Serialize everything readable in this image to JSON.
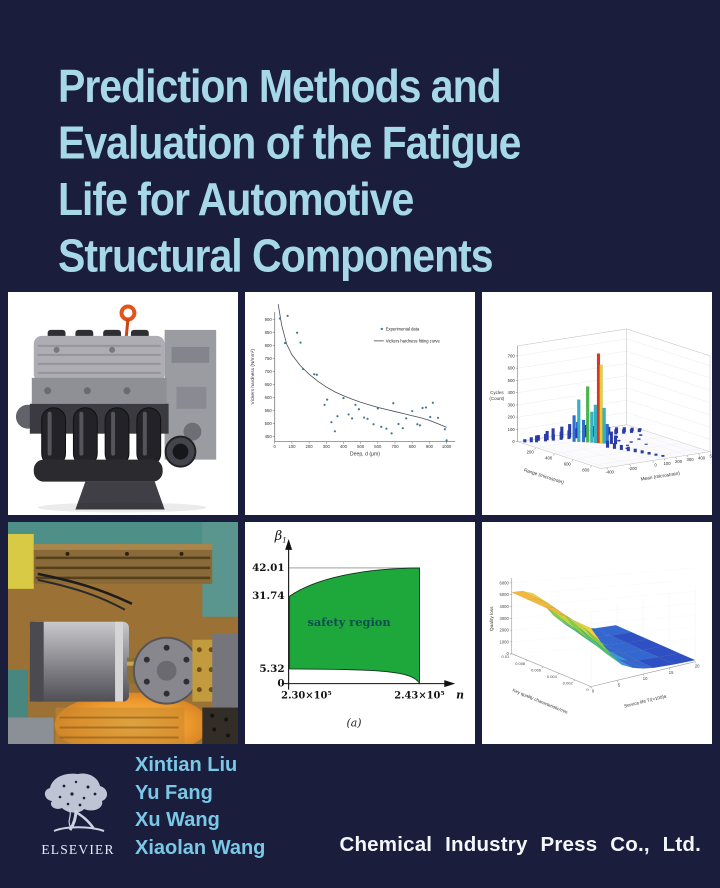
{
  "cover": {
    "background_color": "#1a1d3c",
    "title_color": "#a6d8e9",
    "title_lines": [
      "Prediction Methods and",
      "Evaluation of the Fatigue",
      "Life for Automotive",
      "Structural Components"
    ],
    "authors_color": "#7bc8e6",
    "authors": [
      "Xintian Liu",
      "Yu Fang",
      "Xu Wang",
      "Xiaolan Wang"
    ],
    "publisher": "Chemical Industry Press Co., Ltd.",
    "elsevier_label": "ELSEVIER"
  },
  "chart_data": [
    {
      "id": "hardness_scatter",
      "type": "scatter",
      "xlabel": "Deep, d (μm)",
      "ylabel": "Vickers hardness (N/mm²)",
      "xlim": [
        0,
        1050
      ],
      "ylim": [
        430,
        930
      ],
      "xticks": [
        0,
        100,
        200,
        300,
        400,
        500,
        600,
        700,
        800,
        900,
        1000
      ],
      "yticks": [
        450,
        500,
        550,
        600,
        650,
        700,
        750,
        800,
        850,
        900
      ],
      "legend": [
        "Experimental data",
        "Vickers hardness fitting curve"
      ],
      "points": [
        [
          30,
          905
        ],
        [
          75,
          915
        ],
        [
          60,
          810
        ],
        [
          130,
          850
        ],
        [
          150,
          812
        ],
        [
          165,
          710
        ],
        [
          230,
          690
        ],
        [
          245,
          688
        ],
        [
          290,
          572
        ],
        [
          305,
          592
        ],
        [
          330,
          505
        ],
        [
          350,
          470
        ],
        [
          365,
          528
        ],
        [
          400,
          598
        ],
        [
          430,
          535
        ],
        [
          450,
          520
        ],
        [
          470,
          572
        ],
        [
          490,
          555
        ],
        [
          520,
          523
        ],
        [
          540,
          518
        ],
        [
          575,
          497
        ],
        [
          600,
          558
        ],
        [
          620,
          487
        ],
        [
          650,
          480
        ],
        [
          680,
          462
        ],
        [
          690,
          578
        ],
        [
          720,
          498
        ],
        [
          745,
          482
        ],
        [
          765,
          520
        ],
        [
          800,
          548
        ],
        [
          830,
          497
        ],
        [
          845,
          493
        ],
        [
          860,
          560
        ],
        [
          880,
          562
        ],
        [
          905,
          525
        ],
        [
          920,
          580
        ],
        [
          950,
          522
        ],
        [
          990,
          478
        ],
        [
          1000,
          435
        ]
      ],
      "curve": [
        [
          20,
          960
        ],
        [
          40,
          880
        ],
        [
          70,
          805
        ],
        [
          100,
          765
        ],
        [
          150,
          722
        ],
        [
          200,
          690
        ],
        [
          250,
          663
        ],
        [
          300,
          641
        ],
        [
          350,
          622
        ],
        [
          400,
          607
        ],
        [
          450,
          594
        ],
        [
          500,
          582
        ],
        [
          550,
          572
        ],
        [
          600,
          562
        ],
        [
          650,
          554
        ],
        [
          700,
          546
        ],
        [
          750,
          538
        ],
        [
          800,
          530
        ],
        [
          850,
          522
        ],
        [
          900,
          512
        ],
        [
          950,
          499
        ],
        [
          1000,
          485
        ]
      ]
    },
    {
      "id": "rainflow_histogram_3d",
      "type": "hist3d",
      "zlabel_lines": [
        "Cycles",
        "(Count)"
      ],
      "xlabel": "Range (microstrain)",
      "ylabel": "Mean (microstrain)",
      "zticks": [
        0,
        100,
        200,
        300,
        400,
        500,
        600,
        700
      ],
      "xticks": [
        200,
        400,
        600,
        800
      ],
      "yticks": [
        -400,
        -200,
        0,
        100,
        200,
        300,
        400,
        500
      ],
      "bars": [
        [
          40,
          -420,
          25
        ],
        [
          60,
          -380,
          40
        ],
        [
          80,
          -350,
          55
        ],
        [
          50,
          -310,
          45
        ],
        [
          90,
          -280,
          60
        ],
        [
          70,
          -250,
          75
        ],
        [
          100,
          -220,
          50
        ],
        [
          60,
          -190,
          85
        ],
        [
          110,
          -160,
          65
        ],
        [
          80,
          -130,
          95
        ],
        [
          120,
          -100,
          70
        ],
        [
          90,
          -70,
          110
        ],
        [
          130,
          -40,
          80
        ],
        [
          100,
          -10,
          120
        ],
        [
          140,
          20,
          70
        ],
        [
          110,
          50,
          90
        ],
        [
          150,
          80,
          60
        ],
        [
          120,
          110,
          75
        ],
        [
          160,
          140,
          50
        ],
        [
          130,
          170,
          60
        ],
        [
          170,
          200,
          45
        ],
        [
          140,
          230,
          55
        ],
        [
          180,
          260,
          40
        ],
        [
          150,
          290,
          45
        ],
        [
          190,
          320,
          35
        ],
        [
          160,
          350,
          40
        ],
        [
          200,
          380,
          30
        ],
        [
          170,
          410,
          30
        ],
        [
          210,
          440,
          25
        ],
        [
          180,
          470,
          20
        ],
        [
          200,
          -120,
          215
        ],
        [
          220,
          -95,
          345
        ],
        [
          240,
          -70,
          180
        ],
        [
          260,
          -50,
          455
        ],
        [
          280,
          -30,
          250
        ],
        [
          300,
          -15,
          310
        ],
        [
          315,
          0,
          730
        ],
        [
          330,
          10,
          640
        ],
        [
          345,
          25,
          290
        ],
        [
          360,
          40,
          160
        ],
        [
          380,
          60,
          100
        ],
        [
          400,
          80,
          70
        ],
        [
          450,
          -30,
          55
        ],
        [
          500,
          -10,
          45
        ],
        [
          550,
          10,
          40
        ],
        [
          600,
          30,
          35
        ],
        [
          650,
          50,
          28
        ],
        [
          700,
          70,
          24
        ],
        [
          750,
          90,
          20
        ],
        [
          800,
          110,
          16
        ],
        [
          850,
          130,
          14
        ],
        [
          350,
          150,
          12
        ],
        [
          420,
          200,
          10
        ],
        [
          480,
          120,
          9
        ],
        [
          380,
          300,
          10
        ],
        [
          520,
          250,
          8
        ],
        [
          300,
          380,
          12
        ],
        [
          260,
          200,
          15
        ],
        [
          550,
          60,
          10
        ]
      ]
    },
    {
      "id": "safety_region",
      "type": "area",
      "ylabel": "β",
      "ylabel_sub": "1",
      "xlabel": "n",
      "yticks": [
        0,
        5.32,
        31.74,
        42.01
      ],
      "xtick_labels": [
        "2.30×10⁵",
        "2.43×10⁵"
      ],
      "region_label": "safety region",
      "caption": "(a)",
      "region_color": "#1ea83c",
      "y_upper_left": 31.74,
      "y_upper_right": 42.01,
      "y_lower_left": 5.32,
      "y_lower_right": 0
    },
    {
      "id": "quality_loss_surface",
      "type": "surface",
      "zlabel": "Quality loss",
      "xlabel": "Key quality characteristic/mm",
      "ylabel": "Service life T/(×100)a",
      "zticks": [
        0,
        1000,
        2000,
        3000,
        4000,
        5000,
        6000
      ],
      "xticks": [
        0.01,
        0.008,
        0.006,
        0.004,
        0.002,
        0
      ],
      "yticks": [
        0,
        5,
        10,
        15,
        20
      ],
      "grid": {
        "kqc": [
          0.01,
          0.008,
          0.006,
          0.004,
          0.002,
          0
        ],
        "life": [
          0,
          2,
          4,
          6,
          8,
          10,
          12,
          16,
          20
        ],
        "z": [
          [
            5200,
            5100,
            4700,
            3600,
            2400,
            1500,
            900,
            450,
            300
          ],
          [
            5150,
            5000,
            4400,
            3100,
            2000,
            1200,
            750,
            400,
            260
          ],
          [
            5100,
            4800,
            4000,
            2600,
            1600,
            950,
            600,
            350,
            230
          ],
          [
            5050,
            4500,
            3400,
            2100,
            1250,
            750,
            500,
            300,
            200
          ],
          [
            5000,
            4100,
            2800,
            1600,
            950,
            600,
            400,
            250,
            160
          ],
          [
            4950,
            3500,
            2200,
            1200,
            750,
            480,
            320,
            200,
            130
          ]
        ]
      }
    }
  ]
}
